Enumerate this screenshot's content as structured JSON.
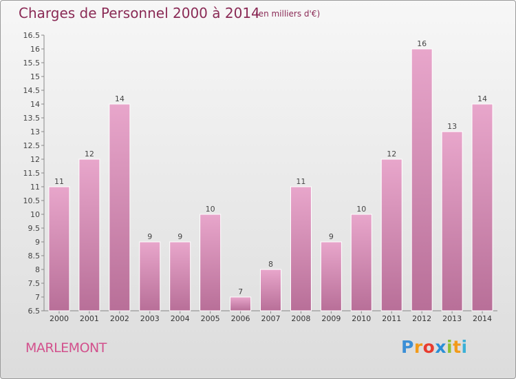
{
  "header": {
    "title": "Charges de Personnel 2000 à 2014",
    "subtitle": "(en milliers d'€)"
  },
  "footer": {
    "place": "MARLEMONT",
    "logo_letters": [
      "P",
      "r",
      "o",
      "x",
      "i",
      "t",
      "i"
    ],
    "logo_colors": [
      "#3b8fd6",
      "#f29b1a",
      "#e83c2f",
      "#2a8fd6",
      "#8fc031",
      "#f29b1a",
      "#3bb0d6"
    ]
  },
  "chart_data": {
    "type": "bar",
    "categories": [
      "2000",
      "2001",
      "2002",
      "2003",
      "2004",
      "2005",
      "2006",
      "2007",
      "2008",
      "2009",
      "2010",
      "2011",
      "2012",
      "2013",
      "2014"
    ],
    "values": [
      11,
      12,
      14,
      9,
      9,
      10,
      7,
      8,
      11,
      9,
      10,
      12,
      16,
      13,
      14
    ],
    "ylim": [
      6.5,
      16.5
    ],
    "yticks": [
      "6.5",
      "7",
      "7.5",
      "8",
      "8.5",
      "9",
      "9.5",
      "10",
      "10.5",
      "11",
      "11.5",
      "12",
      "12.5",
      "13",
      "13.5",
      "14",
      "14.5",
      "15",
      "15.5",
      "16",
      "16.5"
    ],
    "grid": false,
    "bar_color": "#d17aab",
    "bar_color_light": "#e8a6cb",
    "xlabel": "",
    "ylabel": ""
  }
}
